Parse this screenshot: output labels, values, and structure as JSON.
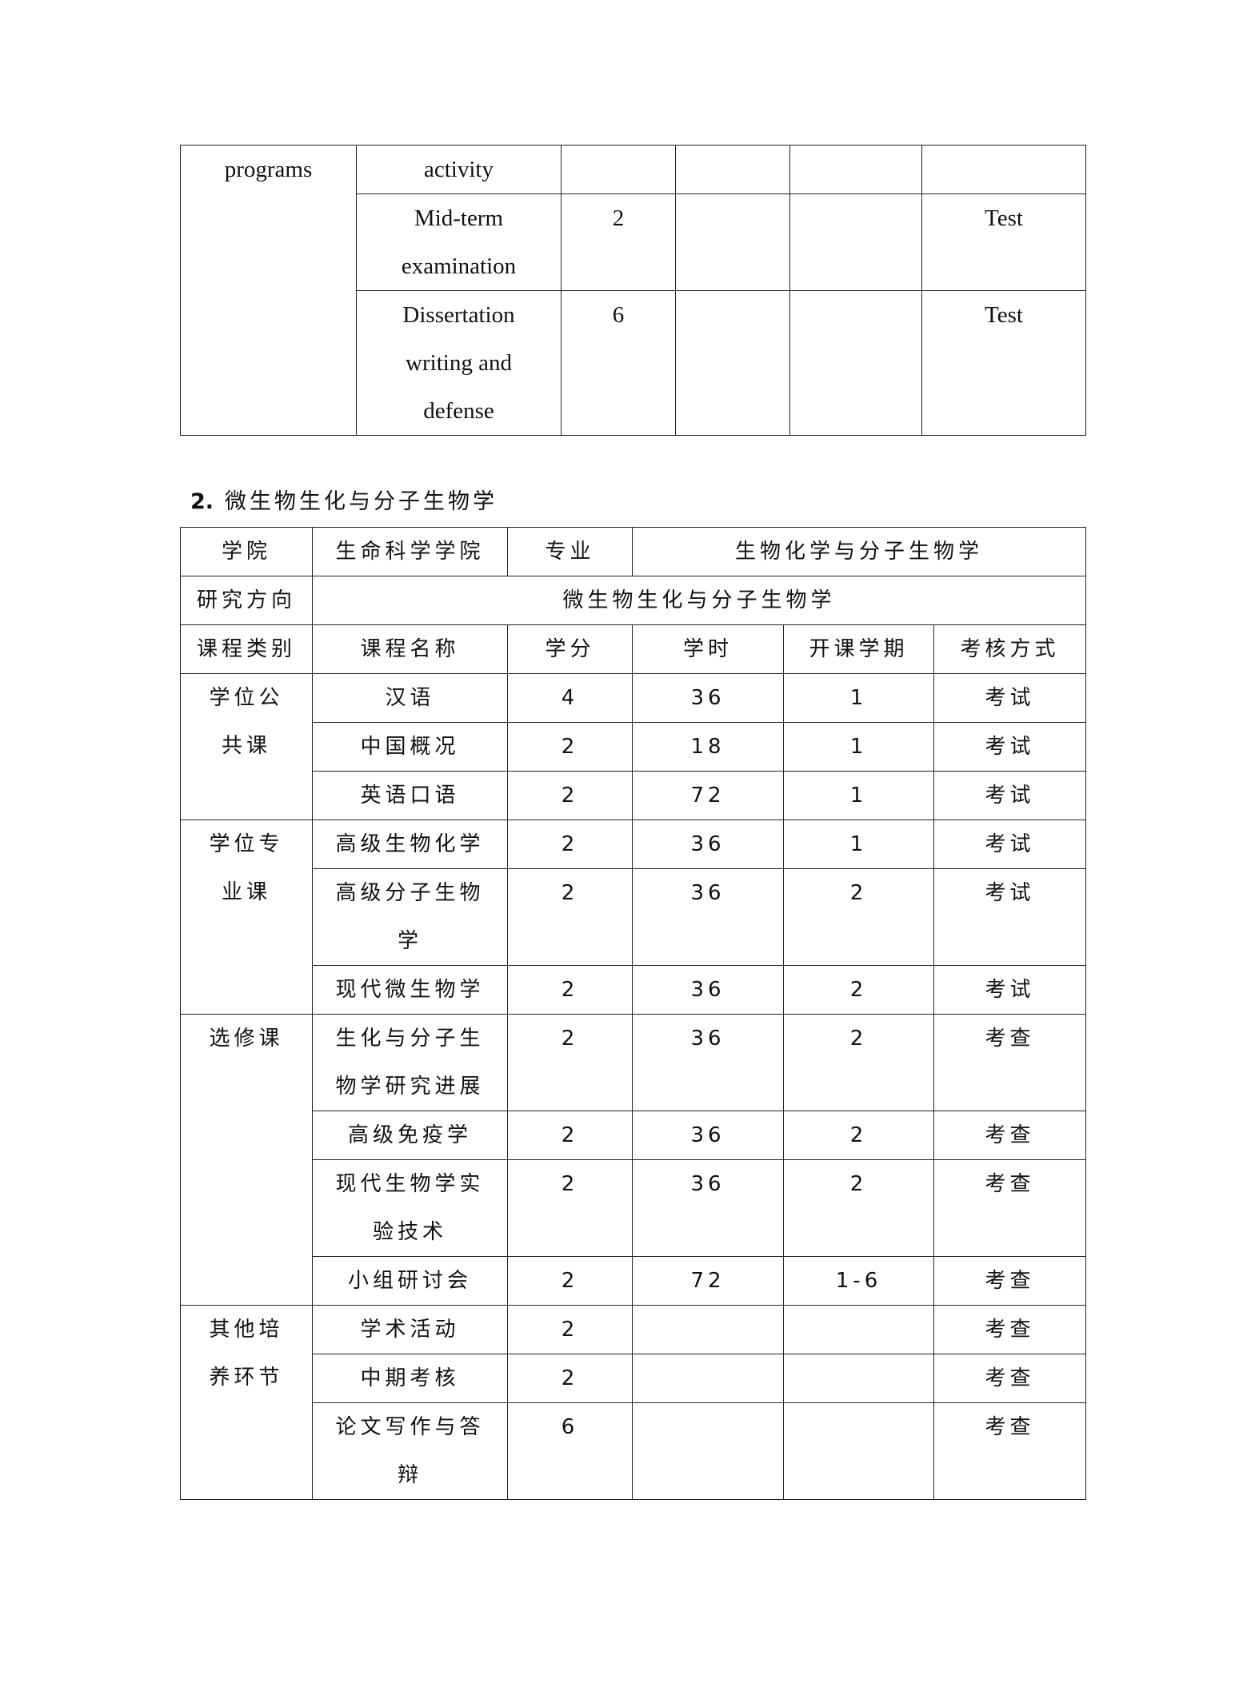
{
  "table1": {
    "rows": [
      {
        "category": "programs",
        "rowspan": 3,
        "cells": [
          "activity",
          "",
          "",
          "",
          ""
        ]
      },
      {
        "cells": [
          "Mid-term examination",
          "2",
          "",
          "",
          "Test"
        ]
      },
      {
        "cells": [
          "Dissertation writing and defense",
          "6",
          "",
          "",
          "Test"
        ]
      }
    ]
  },
  "section2": {
    "number": "2.",
    "title": "微生物生化与分子生物学"
  },
  "table2": {
    "college_label": "学院",
    "college_value": "生命科学学院",
    "major_label": "专业",
    "major_value": "生物化学与分子生物学",
    "direction_label": "研究方向",
    "direction_value": "微生物生化与分子生物学",
    "headers": [
      "课程类别",
      "课程名称",
      "学分",
      "学时",
      "开课学期",
      "考核方式"
    ],
    "groups": [
      {
        "category": "学位公共课",
        "rows": [
          [
            "汉语",
            "4",
            "36",
            "1",
            "考试"
          ],
          [
            "中国概况",
            "2",
            "18",
            "1",
            "考试"
          ],
          [
            "英语口语",
            "2",
            "72",
            "1",
            "考试"
          ]
        ]
      },
      {
        "category": "学位专业课",
        "rows": [
          [
            "高级生物化学",
            "2",
            "36",
            "1",
            "考试"
          ],
          [
            "高级分子生物学",
            "2",
            "36",
            "2",
            "考试"
          ],
          [
            "现代微生物学",
            "2",
            "36",
            "2",
            "考试"
          ]
        ]
      },
      {
        "category": "选修课",
        "rows": [
          [
            "生化与分子生物学研究进展",
            "2",
            "36",
            "2",
            "考查"
          ],
          [
            "高级免疫学",
            "2",
            "36",
            "2",
            "考查"
          ],
          [
            "现代生物学实验技术",
            "2",
            "36",
            "2",
            "考查"
          ],
          [
            "小组研讨会",
            "2",
            "72",
            "1-6",
            "考查"
          ]
        ]
      },
      {
        "category": "其他培养环节",
        "rows": [
          [
            "学术活动",
            "2",
            "",
            "",
            "考查"
          ],
          [
            "中期考核",
            "2",
            "",
            "",
            "考查"
          ],
          [
            "论文写作与答辩",
            "6",
            "",
            "",
            "考查"
          ]
        ]
      }
    ]
  }
}
